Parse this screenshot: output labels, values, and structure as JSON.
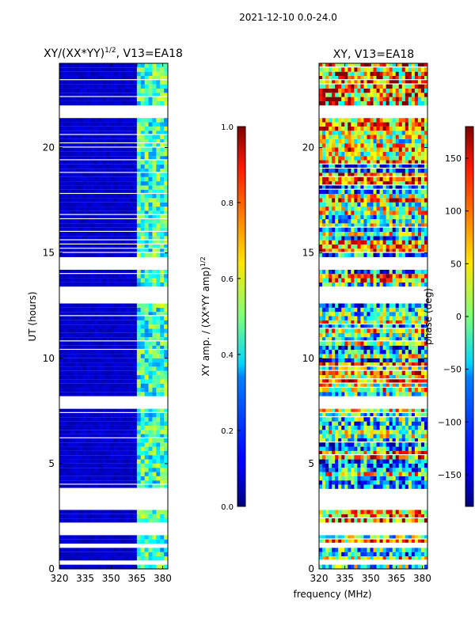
{
  "chart_data": [
    {
      "type": "heatmap",
      "suptitle": "2021-12-10 0.0-24.0",
      "title_main": "XY/(XX*YY)",
      "title_sup": "1/2",
      "title_tail": ", V13=EA18",
      "ylabel": "UT (hours)",
      "xlabel": "",
      "x_ticks": [
        320,
        335,
        350,
        365,
        380
      ],
      "y_ticks": [
        0,
        5,
        10,
        15,
        20
      ],
      "xlim": [
        320,
        383
      ],
      "ylim": [
        0,
        24
      ],
      "colorbar": {
        "label_main": "XY amp. / (XX*YY amp)",
        "label_sup": "1/2",
        "ticks": [
          "0.0",
          "0.2",
          "0.4",
          "0.6",
          "0.8",
          "1.0"
        ],
        "range": [
          0.0,
          1.0
        ]
      },
      "flagged_ut_bands": [
        [
          0.3,
          0.4
        ],
        [
          1.0,
          1.1
        ],
        [
          1.7,
          2.1
        ],
        [
          2.9,
          3.8
        ],
        [
          7.6,
          8.1
        ],
        [
          12.6,
          13.3
        ],
        [
          14.3,
          14.7
        ],
        [
          21.5,
          22.0
        ]
      ],
      "bright_freq_band": [
        363,
        383
      ]
    },
    {
      "type": "heatmap",
      "title": "XY, V13=EA18",
      "ylabel": "",
      "xlabel": "frequency (MHz)",
      "x_ticks": [
        320,
        335,
        350,
        365,
        380
      ],
      "y_ticks": [
        0,
        5,
        10,
        15,
        20
      ],
      "xlim": [
        320,
        383
      ],
      "ylim": [
        0,
        24
      ],
      "colorbar": {
        "label": "phase (deg)",
        "ticks": [
          "150",
          "100",
          "50",
          "0",
          "−50",
          "−100",
          "−150"
        ],
        "range": [
          -180,
          180
        ]
      },
      "flagged_ut_bands": [
        [
          0.3,
          0.4
        ],
        [
          1.0,
          1.1
        ],
        [
          1.7,
          2.1
        ],
        [
          2.9,
          3.8
        ],
        [
          7.6,
          8.1
        ],
        [
          12.6,
          13.3
        ],
        [
          14.3,
          14.7
        ],
        [
          21.5,
          22.0
        ]
      ]
    }
  ]
}
